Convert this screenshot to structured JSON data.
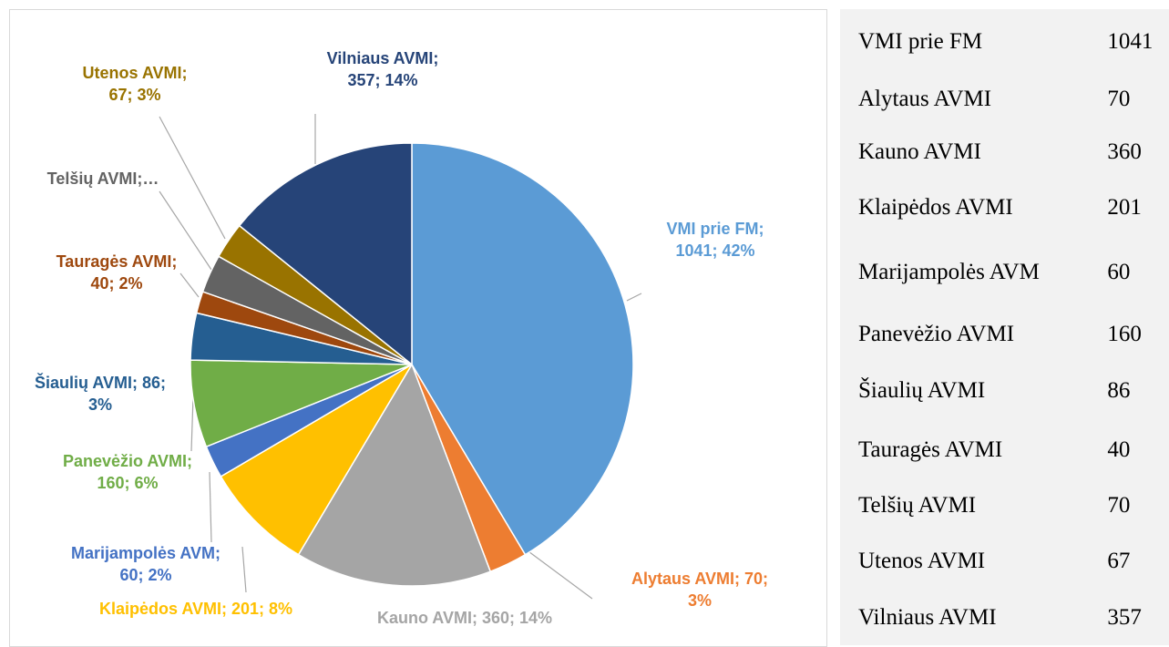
{
  "chart_data": {
    "type": "pie",
    "categories": [
      "VMI prie FM",
      "Alytaus AVMI",
      "Kauno AVMI",
      "Klaipėdos AVMI",
      "Marijampolės AVM",
      "Panevėžio AVMI",
      "Šiaulių AVMI",
      "Tauragės AVMI",
      "Telšių AVMI",
      "Utenos AVMI",
      "Vilniaus AVMI"
    ],
    "values": [
      1041,
      70,
      360,
      201,
      60,
      160,
      86,
      40,
      70,
      67,
      357
    ],
    "value_labels": [
      "VMI prie FM;\n1041; 42%",
      "Alytaus AVMI; 70;\n3%",
      "Kauno AVMI; 360; 14%",
      "Klaipėdos AVMI; 201; 8%",
      "Marijampolės AVM;\n60; 2%",
      "Panevėžio AVMI;\n160; 6%",
      "Šiaulių AVMI; 86;\n3%",
      "Tauragės AVMI;\n40; 2%",
      "Telšių AVMI;…",
      "Utenos AVMI;\n67; 3%",
      "Vilniaus AVMI;\n357; 14%"
    ],
    "colors": [
      "#5b9bd5",
      "#ed7d31",
      "#a5a5a5",
      "#ffc000",
      "#4472c4",
      "#70ad47",
      "#255e91",
      "#9e480e",
      "#636363",
      "#997300",
      "#264478"
    ]
  }
}
